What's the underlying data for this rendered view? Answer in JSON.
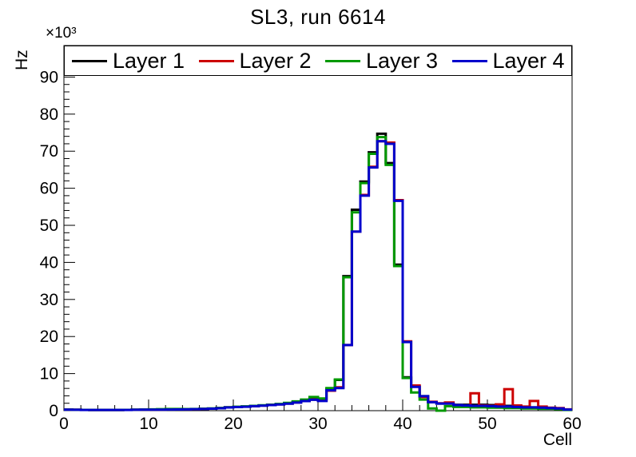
{
  "title": "SL3, run 6614",
  "axes": {
    "x": {
      "label": "Cell",
      "min": 0,
      "max": 60,
      "major_ticks": [
        0,
        10,
        20,
        30,
        40,
        50,
        60
      ],
      "major_tick_labels": [
        "0",
        "10",
        "20",
        "30",
        "40",
        "50",
        "60"
      ],
      "minor_step": 2
    },
    "y": {
      "label": "Hz",
      "exponent_label": "×10³",
      "min": 0,
      "max": 98500,
      "major_step": 10000,
      "major_tick_labels": [
        "0",
        "10",
        "20",
        "30",
        "40",
        "50",
        "60",
        "70",
        "80",
        "90"
      ],
      "minor_step": 2000
    }
  },
  "legend": {
    "position": "top-inside-full-width"
  },
  "chart_data": {
    "type": "line",
    "style": "step-histogram",
    "title": "SL3, run 6614",
    "xlabel": "Cell",
    "ylabel": "Hz",
    "y_unit_multiplier_label": "×10³",
    "xlim": [
      0,
      60
    ],
    "ylim": [
      0,
      98500
    ],
    "bin_width": 1,
    "first_bin_left_edge": 0,
    "grid": false,
    "series": [
      {
        "name": "Layer 1",
        "color": "#000000",
        "values": [
          300,
          250,
          220,
          200,
          200,
          200,
          200,
          220,
          250,
          280,
          300,
          300,
          320,
          350,
          380,
          420,
          480,
          560,
          700,
          900,
          1000,
          1100,
          1250,
          1400,
          1550,
          1750,
          1950,
          2250,
          2650,
          3100,
          3000,
          5900,
          8300,
          36300,
          54200,
          61800,
          69700,
          74700,
          66800,
          39400,
          9000,
          6500,
          3900,
          2300,
          1900,
          1900,
          1600,
          1600,
          1600,
          1600,
          1500,
          1400,
          1300,
          1100,
          1000,
          900,
          800,
          700,
          600,
          300
        ]
      },
      {
        "name": "Layer 2",
        "color": "#cc0000",
        "values": [
          280,
          240,
          210,
          200,
          200,
          200,
          200,
          210,
          240,
          270,
          290,
          290,
          310,
          340,
          370,
          410,
          470,
          550,
          680,
          880,
          980,
          1080,
          1230,
          1380,
          1530,
          1700,
          1900,
          2200,
          2600,
          3000,
          2700,
          5400,
          6300,
          17700,
          48300,
          58200,
          65800,
          72700,
          72300,
          56800,
          18700,
          6800,
          3700,
          2400,
          2000,
          2200,
          1500,
          1400,
          4700,
          1400,
          1300,
          1700,
          5800,
          1400,
          1100,
          2600,
          1100,
          800,
          700,
          350
        ]
      },
      {
        "name": "Layer 3",
        "color": "#009900",
        "values": [
          280,
          240,
          210,
          200,
          200,
          200,
          200,
          220,
          260,
          300,
          350,
          400,
          450,
          450,
          420,
          450,
          500,
          580,
          720,
          920,
          1050,
          1150,
          1300,
          1450,
          1600,
          1800,
          2100,
          2500,
          3000,
          3700,
          3300,
          6100,
          8400,
          36000,
          53500,
          61400,
          69300,
          73800,
          66300,
          39000,
          8800,
          4900,
          3000,
          600,
          0,
          1200,
          1000,
          1000,
          900,
          900,
          800,
          800,
          700,
          700,
          600,
          600,
          500,
          500,
          400,
          200
        ]
      },
      {
        "name": "Layer 4",
        "color": "#0000cc",
        "values": [
          270,
          230,
          200,
          190,
          190,
          190,
          190,
          200,
          230,
          260,
          280,
          280,
          300,
          330,
          360,
          400,
          460,
          540,
          660,
          860,
          960,
          1060,
          1210,
          1360,
          1510,
          1680,
          1880,
          2180,
          2580,
          2950,
          2600,
          5500,
          6100,
          17700,
          48300,
          58000,
          65600,
          72700,
          72000,
          56600,
          18500,
          6400,
          3900,
          2300,
          1900,
          1900,
          1500,
          1400,
          1300,
          1300,
          1200,
          1100,
          1100,
          1000,
          900,
          900,
          800,
          700,
          600,
          300
        ]
      }
    ]
  }
}
